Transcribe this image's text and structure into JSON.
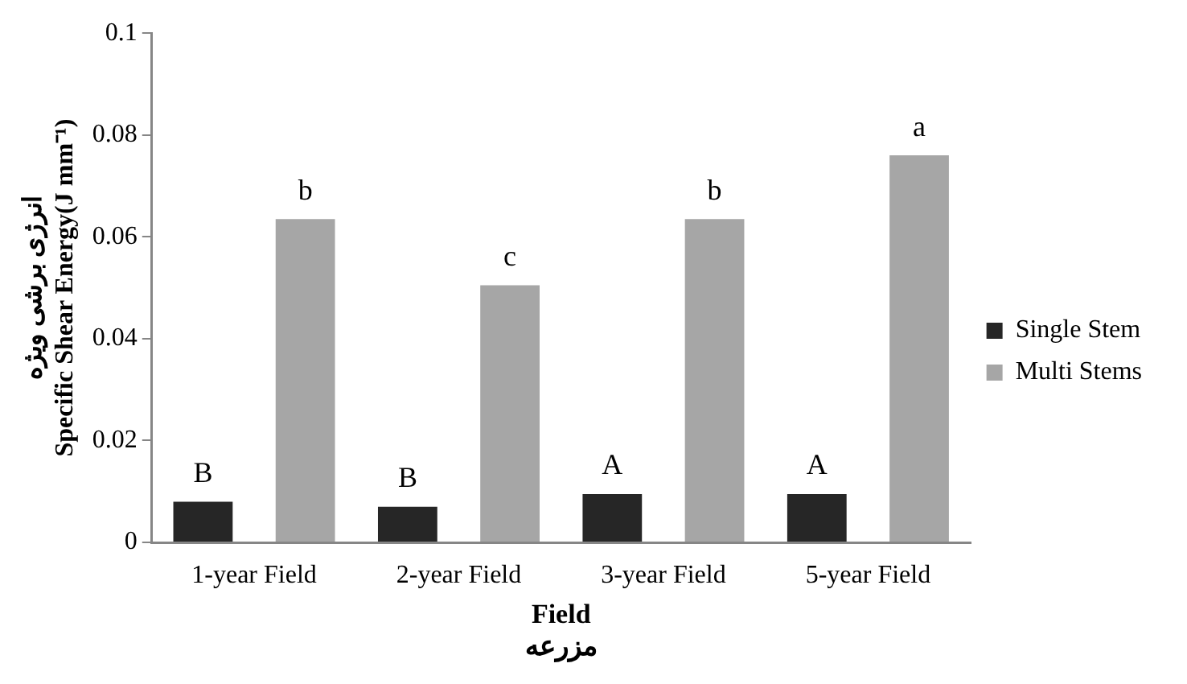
{
  "chart_data": {
    "type": "bar",
    "categories": [
      "1-year Field",
      "2-year Field",
      "3-year Field",
      "5-year Field"
    ],
    "series": [
      {
        "name": "Single Stem",
        "color": "#262626",
        "values": [
          0.008,
          0.007,
          0.0095,
          0.0095
        ]
      },
      {
        "name": "Multi Stems",
        "color": "#a6a6a6",
        "values": [
          0.0635,
          0.0505,
          0.0635,
          0.076
        ]
      }
    ],
    "xlabel": [
      "Field",
      "مزرعه"
    ],
    "ylabel": [
      "انرژی برشی ویژه",
      "Specific Shear Energy(J mm⁻¹)"
    ],
    "ylim": [
      0,
      0.1
    ],
    "yticks": [
      0,
      0.02,
      0.04,
      0.06,
      0.08,
      0.1
    ],
    "grid": false,
    "legend": "right",
    "annotations": [
      "B",
      "b",
      "B",
      "c",
      "A",
      "b",
      "A",
      "a"
    ]
  }
}
